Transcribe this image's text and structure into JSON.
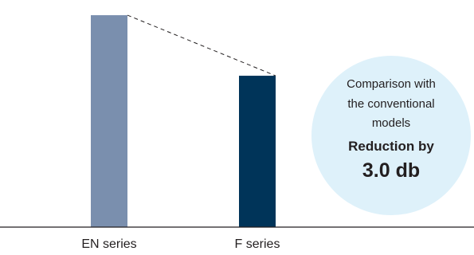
{
  "chart_data": {
    "type": "bar",
    "categories": [
      "EN series",
      "F series"
    ],
    "values": [
      3.0,
      0
    ],
    "ylim": [
      -7.5,
      3.2
    ],
    "comparison_line": "dashed",
    "colors": [
      "#7a8fae",
      "#003459"
    ],
    "callout": {
      "lines": [
        "Comparison with",
        "the conventional",
        "models"
      ],
      "emphasis": [
        "Reduction by",
        "3.0 db"
      ],
      "color": "#def1fa"
    }
  }
}
